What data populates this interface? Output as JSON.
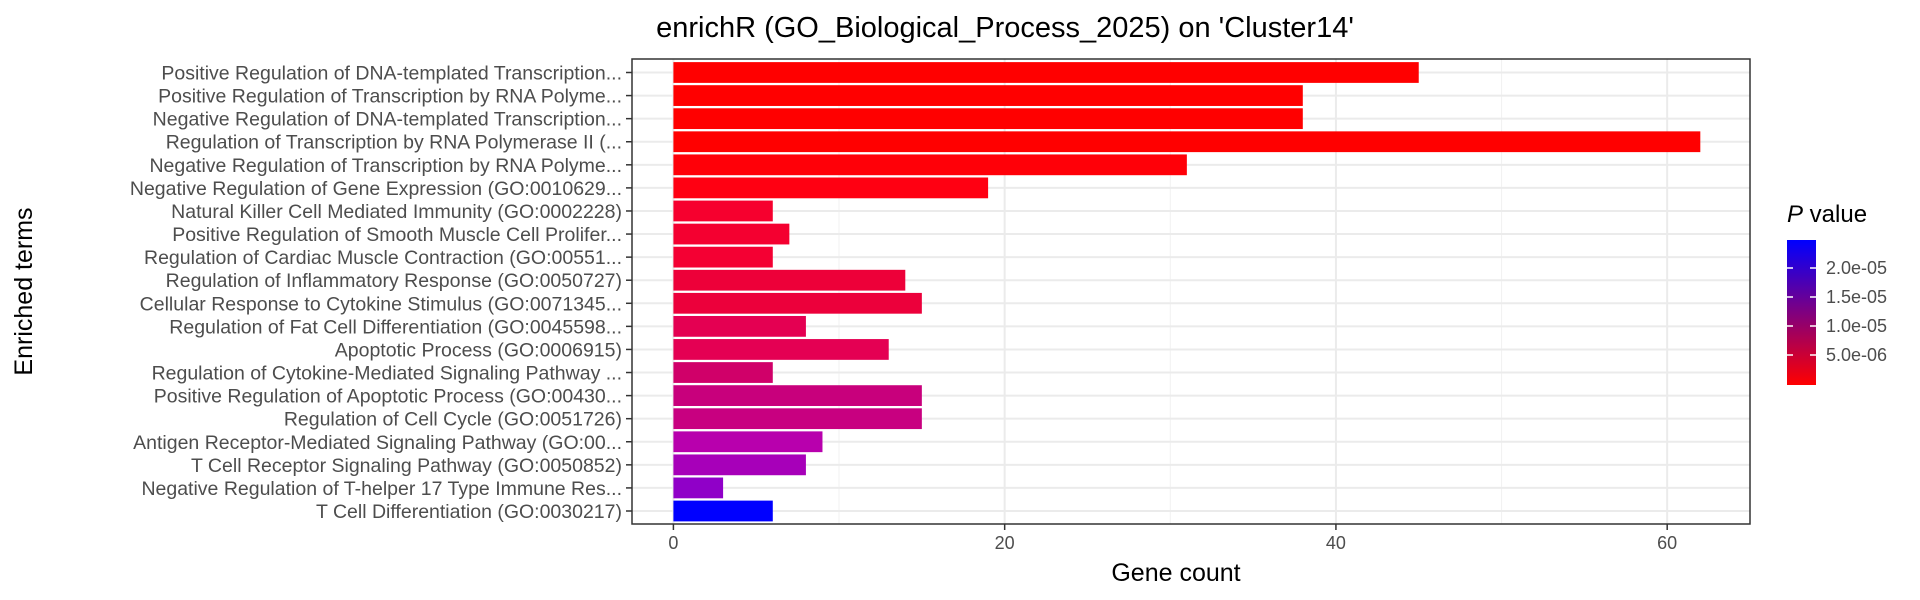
{
  "chart_data": {
    "type": "bar",
    "orientation": "horizontal",
    "title": "enrichR (GO_Biological_Process_2025) on 'Cluster14'",
    "xlabel": "Gene count",
    "ylabel": "Enriched terms",
    "xlim": [
      -2.5,
      65
    ],
    "x_ticks": [
      "0",
      "20",
      "40",
      "60"
    ],
    "grid": true,
    "legend": {
      "title_italic": "P",
      "title_rest": " value",
      "position": "right",
      "gradient_colors": [
        "#ff0000",
        "#0000ff"
      ],
      "ticks": [
        "2.0e-05",
        "1.5e-05",
        "1.0e-05",
        "5.0e-06"
      ]
    },
    "categories": [
      "Positive Regulation of DNA-templated Transcription...",
      "Positive Regulation of Transcription by RNA Polyme...",
      "Negative Regulation of DNA-templated Transcription...",
      "Regulation of Transcription by RNA Polymerase II (...",
      "Negative Regulation of Transcription by RNA Polyme...",
      "Negative Regulation of Gene Expression (GO:0010629...",
      "Natural Killer Cell Mediated Immunity (GO:0002228)",
      "Positive Regulation of Smooth Muscle Cell Prolifer...",
      "Regulation of Cardiac Muscle Contraction (GO:00551...",
      "Regulation of Inflammatory Response (GO:0050727)",
      "Cellular Response to Cytokine Stimulus (GO:0071345...",
      "Regulation of Fat Cell Differentiation (GO:0045598...",
      "Apoptotic Process (GO:0006915)",
      "Regulation of Cytokine-Mediated Signaling Pathway ...",
      "Positive Regulation of Apoptotic Process (GO:00430...",
      "Regulation of Cell Cycle (GO:0051726)",
      "Antigen Receptor-Mediated Signaling Pathway (GO:00...",
      "T Cell Receptor Signaling Pathway (GO:0050852)",
      "Negative Regulation of T-helper 17 Type Immune Res...",
      "T Cell Differentiation (GO:0030217)"
    ],
    "values": [
      45,
      38,
      38,
      62,
      31,
      19,
      6,
      7,
      6,
      14,
      15,
      8,
      13,
      6,
      15,
      15,
      9,
      8,
      3,
      6
    ],
    "bar_colors": [
      "#ff0000",
      "#ff0000",
      "#ff0000",
      "#ff0000",
      "#ff0008",
      "#ff0012",
      "#f6002e",
      "#f40030",
      "#f40033",
      "#ed0039",
      "#ec003b",
      "#e40052",
      "#e40053",
      "#d00069",
      "#c8007c",
      "#c80080",
      "#b800ad",
      "#a700b9",
      "#9000c8",
      "#0000ff"
    ]
  }
}
